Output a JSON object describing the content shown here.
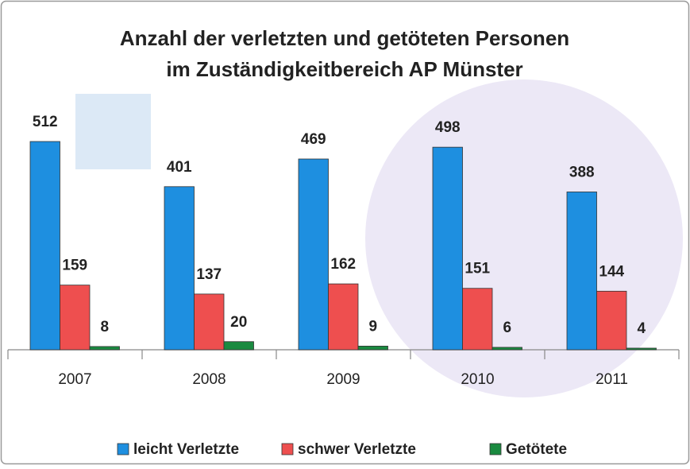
{
  "chart_data": {
    "type": "bar",
    "title": [
      "Anzahl der verletzten und getöteten Personen",
      "im Zuständigkeitbereich AP Münster"
    ],
    "categories": [
      "2007",
      "2008",
      "2009",
      "2010",
      "2011"
    ],
    "series": [
      {
        "name": "leicht Verletzte",
        "color": "#1e8fe0",
        "values": [
          512,
          401,
          469,
          498,
          388
        ]
      },
      {
        "name": "schwer Verletzte",
        "color": "#ee4f4f",
        "values": [
          159,
          137,
          162,
          151,
          144
        ]
      },
      {
        "name": "Getötete",
        "color": "#1a8a40",
        "values": [
          8,
          20,
          9,
          6,
          4
        ]
      }
    ],
    "legend": "bottom"
  }
}
